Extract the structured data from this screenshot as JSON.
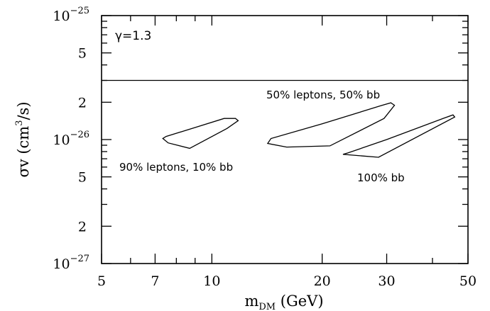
{
  "chart_data": {
    "type": "line",
    "x_scale": "log",
    "y_scale": "log",
    "xlim": [
      5,
      50
    ],
    "ylim": [
      1e-27,
      1e-25
    ],
    "xlabel": "m_DM (GeV)",
    "xlabel_main": "m",
    "xlabel_sub": "DM",
    "xlabel_unit": " (GeV)",
    "ylabel": "σv (cm³/s)",
    "ylabel_pre": "σv (cm",
    "ylabel_exp": "3",
    "ylabel_post": "/s)",
    "x_major_ticks": [
      {
        "value": 5,
        "label": "5"
      },
      {
        "value": 7,
        "label": "7"
      },
      {
        "value": 10,
        "label": "10"
      },
      {
        "value": 20,
        "label": "20"
      },
      {
        "value": 30,
        "label": "30"
      },
      {
        "value": 50,
        "label": "50"
      }
    ],
    "x_minor_ticks": [
      6,
      8,
      9,
      40
    ],
    "y_major_ticks": [
      {
        "value": 1e-27,
        "mantissa": "10",
        "exponent": "−27"
      },
      {
        "value": 2e-27,
        "mantissa": "2",
        "exponent": ""
      },
      {
        "value": 5e-27,
        "mantissa": "5",
        "exponent": ""
      },
      {
        "value": 1e-26,
        "mantissa": "10",
        "exponent": "−26"
      },
      {
        "value": 2e-26,
        "mantissa": "2",
        "exponent": ""
      },
      {
        "value": 5e-26,
        "mantissa": "5",
        "exponent": ""
      },
      {
        "value": 1e-25,
        "mantissa": "10",
        "exponent": "−25"
      }
    ],
    "y_minor_ticks": [
      3e-27,
      4e-27,
      6e-27,
      7e-27,
      8e-27,
      9e-27,
      3e-26,
      4e-26,
      6e-26,
      7e-26,
      8e-26,
      9e-26
    ],
    "annotation": "γ=1.3",
    "reference_line": {
      "y": 3e-26
    },
    "series": [
      {
        "name": "90% leptons, 10% bb",
        "closed": true,
        "points": [
          [
            7.35,
            1.02e-26
          ],
          [
            7.6,
            9.4e-27
          ],
          [
            8.7,
            8.5e-27
          ],
          [
            11.0,
            1.23e-26
          ],
          [
            11.8,
            1.42e-26
          ],
          [
            11.6,
            1.48e-26
          ],
          [
            10.8,
            1.48e-26
          ],
          [
            9.0,
            1.25e-26
          ],
          [
            7.5,
            1.06e-26
          ],
          [
            7.35,
            1.02e-26
          ]
        ]
      },
      {
        "name": "50% leptons, 50% bb",
        "closed": true,
        "points": [
          [
            14.2,
            9.3e-27
          ],
          [
            16.0,
            8.7e-27
          ],
          [
            21.0,
            8.9e-27
          ],
          [
            29.5,
            1.48e-26
          ],
          [
            31.5,
            1.89e-26
          ],
          [
            30.8,
            1.98e-26
          ],
          [
            29.0,
            1.88e-26
          ],
          [
            20.0,
            1.34e-26
          ],
          [
            14.5,
            1.02e-26
          ],
          [
            14.2,
            9.3e-27
          ]
        ]
      },
      {
        "name": "100% bb",
        "closed": true,
        "points": [
          [
            22.8,
            7.6e-27
          ],
          [
            28.5,
            7.2e-27
          ],
          [
            46.0,
            1.52e-26
          ],
          [
            45.5,
            1.58e-26
          ],
          [
            43.0,
            1.49e-26
          ],
          [
            30.0,
            1e-26
          ],
          [
            23.5,
            7.8e-27
          ],
          [
            22.8,
            7.6e-27
          ]
        ]
      }
    ],
    "labels": [
      {
        "series": "90% leptons, 10% bb",
        "text": "90% leptons, 10% bb"
      },
      {
        "series": "50% leptons, 50% bb",
        "text": "50% leptons, 50% bb"
      },
      {
        "series": "100% bb",
        "text": "100% bb"
      }
    ]
  }
}
